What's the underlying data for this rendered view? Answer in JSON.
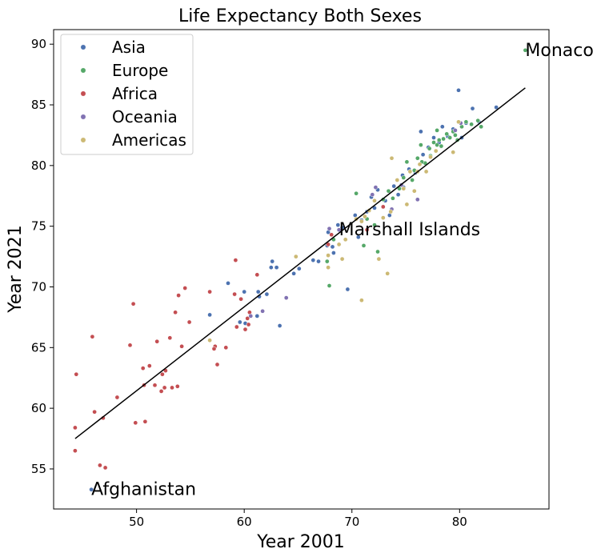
{
  "chart_data": {
    "type": "scatter",
    "title": "Life Expectancy Both Sexes",
    "xlabel": "Year 2001",
    "ylabel": "Year 2021",
    "xlim": [
      42.3,
      88.3
    ],
    "ylim": [
      51.7,
      91.2
    ],
    "xticks": [
      50,
      60,
      70,
      80
    ],
    "yticks": [
      55,
      60,
      65,
      70,
      75,
      80,
      85,
      90
    ],
    "grid": false,
    "legend_position": "top-left",
    "series": [
      {
        "name": "Asia",
        "color": "#4c72b0",
        "points": [
          [
            45.8,
            53.3
          ],
          [
            56.8,
            67.7
          ],
          [
            58.5,
            70.3
          ],
          [
            59.6,
            67.1
          ],
          [
            60,
            69.6
          ],
          [
            60.1,
            67.0
          ],
          [
            61.2,
            67.6
          ],
          [
            61.3,
            69.6
          ],
          [
            61.4,
            69.2
          ],
          [
            62.1,
            69.4
          ],
          [
            62.5,
            71.6
          ],
          [
            62.6,
            72.1
          ],
          [
            63.0,
            71.6
          ],
          [
            63.3,
            66.8
          ],
          [
            64.6,
            71.1
          ],
          [
            65.1,
            71.5
          ],
          [
            66.4,
            72.2
          ],
          [
            66.9,
            72.1
          ],
          [
            67.7,
            73.4
          ],
          [
            67.8,
            74.5
          ],
          [
            68.2,
            73.3
          ],
          [
            68.3,
            72.8
          ],
          [
            68.7,
            75.1
          ],
          [
            69.1,
            74.9
          ],
          [
            69.6,
            69.8
          ],
          [
            70.3,
            75.9
          ],
          [
            70.9,
            75.5
          ],
          [
            71.4,
            76.2
          ],
          [
            71.8,
            77.4
          ],
          [
            72.1,
            76.5
          ],
          [
            72.4,
            78.0
          ],
          [
            73.1,
            77.1
          ],
          [
            73.5,
            75.9
          ],
          [
            73.9,
            78.3
          ],
          [
            74.3,
            77.6
          ],
          [
            74.7,
            79.2
          ],
          [
            75.3,
            79.7
          ],
          [
            75.9,
            79.4
          ],
          [
            76.4,
            82.8
          ],
          [
            76.6,
            80.9
          ],
          [
            77.1,
            81.5
          ],
          [
            77.6,
            82.3
          ],
          [
            78.1,
            81.9
          ],
          [
            78.4,
            83.2
          ],
          [
            78.9,
            82.4
          ],
          [
            79.4,
            83.0
          ],
          [
            79.9,
            86.2
          ],
          [
            80.2,
            82.3
          ],
          [
            80.6,
            83.5
          ],
          [
            81.2,
            84.7
          ],
          [
            81.8,
            83.6
          ],
          [
            83.4,
            84.8
          ],
          [
            70.6,
            74.1
          ],
          [
            74.8,
            78.2
          ]
        ]
      },
      {
        "name": "Europe",
        "color": "#55a868",
        "points": [
          [
            86.1,
            89.5
          ],
          [
            67.7,
            72.1
          ],
          [
            67.9,
            70.1
          ],
          [
            68.3,
            73.9
          ],
          [
            70.4,
            77.7
          ],
          [
            71.1,
            73.4
          ],
          [
            71.4,
            75.6
          ],
          [
            72.1,
            75.1
          ],
          [
            72.4,
            72.9
          ],
          [
            72.9,
            77.2
          ],
          [
            73.4,
            77.9
          ],
          [
            73.8,
            77.3
          ],
          [
            74.4,
            78.1
          ],
          [
            74.8,
            79.0
          ],
          [
            75.1,
            80.3
          ],
          [
            75.4,
            79.5
          ],
          [
            75.8,
            79.6
          ],
          [
            76.1,
            80.6
          ],
          [
            76.4,
            81.7
          ],
          [
            76.8,
            80.2
          ],
          [
            77.2,
            81.4
          ],
          [
            77.6,
            81.9
          ],
          [
            77.9,
            81.7
          ],
          [
            78.1,
            82.1
          ],
          [
            78.3,
            81.6
          ],
          [
            78.5,
            82.2
          ],
          [
            78.8,
            82.6
          ],
          [
            79.1,
            82.3
          ],
          [
            79.4,
            82.8
          ],
          [
            79.6,
            82.5
          ],
          [
            79.8,
            82.1
          ],
          [
            80.2,
            83.2
          ],
          [
            80.6,
            83.6
          ],
          [
            81.1,
            83.4
          ],
          [
            81.7,
            83.7
          ],
          [
            82.0,
            83.2
          ],
          [
            77.9,
            82.9
          ],
          [
            77.3,
            80.8
          ],
          [
            76.5,
            80.3
          ],
          [
            75.6,
            78.8
          ]
        ]
      },
      {
        "name": "Africa",
        "color": "#c44e52",
        "points": [
          [
            44.3,
            56.5
          ],
          [
            44.3,
            58.4
          ],
          [
            44.4,
            62.8
          ],
          [
            45.9,
            65.9
          ],
          [
            46.1,
            59.7
          ],
          [
            46.6,
            55.3
          ],
          [
            46.9,
            59.2
          ],
          [
            47.1,
            55.1
          ],
          [
            48.2,
            60.9
          ],
          [
            49.4,
            65.2
          ],
          [
            49.7,
            68.6
          ],
          [
            49.9,
            58.8
          ],
          [
            50.6,
            63.3
          ],
          [
            50.7,
            61.9
          ],
          [
            50.8,
            58.9
          ],
          [
            51.2,
            63.5
          ],
          [
            51.7,
            61.9
          ],
          [
            51.9,
            65.5
          ],
          [
            52.3,
            61.4
          ],
          [
            52.4,
            62.8
          ],
          [
            52.6,
            61.7
          ],
          [
            52.7,
            63.1
          ],
          [
            53.1,
            65.8
          ],
          [
            53.3,
            61.7
          ],
          [
            53.6,
            67.9
          ],
          [
            53.8,
            61.8
          ],
          [
            53.9,
            69.3
          ],
          [
            54.2,
            65.1
          ],
          [
            54.5,
            69.9
          ],
          [
            54.9,
            67.1
          ],
          [
            56.8,
            69.6
          ],
          [
            57.3,
            65.1
          ],
          [
            57.2,
            64.9
          ],
          [
            57.5,
            63.6
          ],
          [
            58.3,
            65.0
          ],
          [
            59.1,
            69.4
          ],
          [
            59.2,
            72.2
          ],
          [
            59.3,
            66.7
          ],
          [
            59.7,
            69.0
          ],
          [
            60.1,
            66.5
          ],
          [
            60.3,
            67.4
          ],
          [
            60.4,
            66.9
          ],
          [
            61.2,
            71.0
          ],
          [
            60.5,
            67.9
          ],
          [
            67.8,
            73.5
          ],
          [
            68.1,
            74.3
          ],
          [
            71.4,
            74.7
          ],
          [
            72.9,
            76.6
          ]
        ]
      },
      {
        "name": "Oceania",
        "color": "#8172b2",
        "points": [
          [
            60.6,
            67.6
          ],
          [
            61.7,
            68.0
          ],
          [
            63.9,
            69.1
          ],
          [
            68.8,
            74.7
          ],
          [
            71.9,
            77.6
          ],
          [
            72.2,
            78.2
          ],
          [
            73.7,
            76.4
          ],
          [
            74.6,
            78.4
          ],
          [
            76.1,
            77.2
          ],
          [
            79.6,
            82.9
          ],
          [
            80.1,
            83.5
          ],
          [
            67.9,
            74.8
          ]
        ]
      },
      {
        "name": "Americas",
        "color": "#ccb974",
        "points": [
          [
            56.8,
            65.6
          ],
          [
            64.8,
            72.5
          ],
          [
            67.8,
            72.6
          ],
          [
            67.8,
            71.6
          ],
          [
            68.8,
            73.5
          ],
          [
            69.1,
            72.3
          ],
          [
            69.4,
            73.9
          ],
          [
            70.4,
            75.6
          ],
          [
            70.9,
            75.4
          ],
          [
            70.9,
            68.9
          ],
          [
            71.2,
            75.8
          ],
          [
            71.6,
            76.3
          ],
          [
            72.1,
            77.1
          ],
          [
            72.5,
            72.3
          ],
          [
            72.9,
            75.7
          ],
          [
            73.3,
            71.1
          ],
          [
            73.7,
            80.6
          ],
          [
            73.6,
            76.2
          ],
          [
            74.2,
            78.8
          ],
          [
            74.8,
            78.1
          ],
          [
            75.4,
            79.5
          ],
          [
            75.8,
            77.9
          ],
          [
            76.1,
            79.5
          ],
          [
            76.9,
            79.5
          ],
          [
            77.3,
            80.7
          ],
          [
            77.8,
            81.2
          ],
          [
            79.4,
            81.1
          ],
          [
            79.9,
            83.6
          ],
          [
            76.3,
            80.1
          ],
          [
            75.1,
            76.8
          ]
        ]
      }
    ],
    "regression_line": {
      "x": [
        44.3,
        86.1
      ],
      "y": [
        57.5,
        86.4
      ]
    },
    "annotations": [
      {
        "text": "Monaco",
        "x": 86.1,
        "y": 89.5
      },
      {
        "text": "Marshall Islands",
        "x": 68.8,
        "y": 74.7
      },
      {
        "text": "Afghanistan",
        "x": 45.8,
        "y": 53.3
      }
    ]
  }
}
